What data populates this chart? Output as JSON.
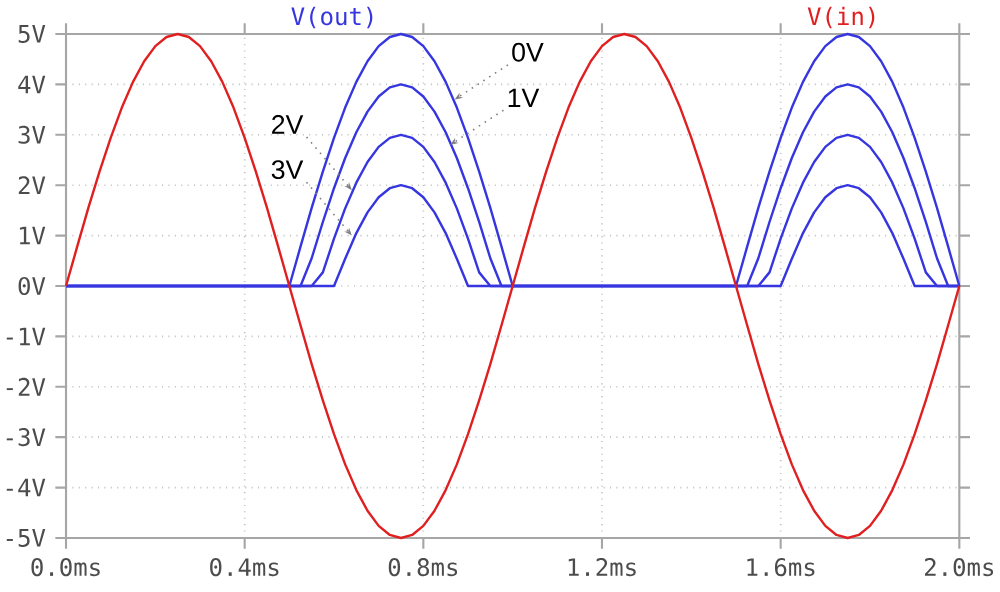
{
  "chart_data": {
    "type": "line",
    "legend": "top",
    "grid": true,
    "marker": "none",
    "line_style": "solid",
    "x": [
      0,
      0.025,
      0.05,
      0.075,
      0.1,
      0.125,
      0.15,
      0.175,
      0.2,
      0.225,
      0.25,
      0.275,
      0.3,
      0.325,
      0.35,
      0.375,
      0.4,
      0.425,
      0.45,
      0.475,
      0.5,
      0.525,
      0.55,
      0.575,
      0.6,
      0.625,
      0.65,
      0.675,
      0.7,
      0.725,
      0.75,
      0.775,
      0.8,
      0.825,
      0.85,
      0.875,
      0.9,
      0.925,
      0.95,
      0.975,
      1,
      1.025,
      1.05,
      1.075,
      1.1,
      1.125,
      1.15,
      1.175,
      1.2,
      1.225,
      1.25,
      1.275,
      1.3,
      1.325,
      1.35,
      1.375,
      1.4,
      1.425,
      1.45,
      1.475,
      1.5,
      1.525,
      1.55,
      1.575,
      1.6,
      1.625,
      1.65,
      1.675,
      1.7,
      1.725,
      1.75,
      1.775,
      1.8,
      1.825,
      1.85,
      1.875,
      1.9,
      1.925,
      1.95,
      1.975,
      2
    ],
    "xlim": [
      0,
      2
    ],
    "ylim": [
      -5,
      5
    ],
    "xticks": [
      {
        "value": 0,
        "label": "0.0ms"
      },
      {
        "value": 0.4,
        "label": "0.4ms"
      },
      {
        "value": 0.8,
        "label": "0.8ms"
      },
      {
        "value": 1.2,
        "label": "1.2ms"
      },
      {
        "value": 1.6,
        "label": "1.6ms"
      },
      {
        "value": 2,
        "label": "2.0ms"
      }
    ],
    "yticks": [
      {
        "value": -5,
        "label": "-5V"
      },
      {
        "value": -4,
        "label": "-4V"
      },
      {
        "value": -3,
        "label": "-3V"
      },
      {
        "value": -2,
        "label": "-2V"
      },
      {
        "value": -1,
        "label": "-1V"
      },
      {
        "value": 0,
        "label": "0V"
      },
      {
        "value": 1,
        "label": "1V"
      },
      {
        "value": 2,
        "label": "2V"
      },
      {
        "value": 3,
        "label": "3V"
      },
      {
        "value": 4,
        "label": "4V"
      },
      {
        "value": 5,
        "label": "5V"
      }
    ],
    "series": [
      {
        "name": "V(out)",
        "color": "#3636e0",
        "values": [
          0,
          0,
          0,
          0,
          0,
          0,
          0,
          0,
          0,
          0,
          0,
          0,
          0,
          0,
          0,
          0,
          0,
          0,
          0,
          0,
          0,
          0.78,
          1.55,
          2.27,
          2.94,
          3.54,
          4.05,
          4.46,
          4.76,
          4.94,
          5,
          4.94,
          4.76,
          4.46,
          4.05,
          3.54,
          2.94,
          2.27,
          1.55,
          0.78,
          0,
          0,
          0,
          0,
          0,
          0,
          0,
          0,
          0,
          0,
          0,
          0,
          0,
          0,
          0,
          0,
          0,
          0,
          0,
          0,
          0,
          0.78,
          1.55,
          2.27,
          2.94,
          3.54,
          4.05,
          4.46,
          4.76,
          4.94,
          5,
          4.94,
          4.76,
          4.46,
          4.05,
          3.54,
          2.94,
          2.27,
          1.55,
          0.78,
          0
        ]
      },
      {
        "color": "#3636e0",
        "values": [
          0,
          0,
          0,
          0,
          0,
          0,
          0,
          0,
          0,
          0,
          0,
          0,
          0,
          0,
          0,
          0,
          0,
          0,
          0,
          0,
          0,
          0,
          0.55,
          1.27,
          1.94,
          2.54,
          3.05,
          3.46,
          3.76,
          3.94,
          4,
          3.94,
          3.76,
          3.46,
          3.05,
          2.54,
          1.94,
          1.27,
          0.55,
          0,
          0,
          0,
          0,
          0,
          0,
          0,
          0,
          0,
          0,
          0,
          0,
          0,
          0,
          0,
          0,
          0,
          0,
          0,
          0,
          0,
          0,
          0,
          0.55,
          1.27,
          1.94,
          2.54,
          3.05,
          3.46,
          3.76,
          3.94,
          4,
          3.94,
          3.76,
          3.46,
          3.05,
          2.54,
          1.94,
          1.27,
          0.55,
          0,
          0
        ]
      },
      {
        "color": "#3636e0",
        "values": [
          0,
          0,
          0,
          0,
          0,
          0,
          0,
          0,
          0,
          0,
          0,
          0,
          0,
          0,
          0,
          0,
          0,
          0,
          0,
          0,
          0,
          0,
          0,
          0.27,
          0.94,
          1.54,
          2.05,
          2.46,
          2.76,
          2.94,
          3,
          2.94,
          2.76,
          2.46,
          2.05,
          1.54,
          0.94,
          0.27,
          0,
          0,
          0,
          0,
          0,
          0,
          0,
          0,
          0,
          0,
          0,
          0,
          0,
          0,
          0,
          0,
          0,
          0,
          0,
          0,
          0,
          0,
          0,
          0,
          0,
          0.27,
          0.94,
          1.54,
          2.05,
          2.46,
          2.76,
          2.94,
          3,
          2.94,
          2.76,
          2.46,
          2.05,
          1.54,
          0.94,
          0.27,
          0,
          0,
          0
        ]
      },
      {
        "color": "#3636e0",
        "values": [
          0,
          0,
          0,
          0,
          0,
          0,
          0,
          0,
          0,
          0,
          0,
          0,
          0,
          0,
          0,
          0,
          0,
          0,
          0,
          0,
          0,
          0,
          0,
          0,
          0,
          0.54,
          1.05,
          1.46,
          1.76,
          1.94,
          2,
          1.94,
          1.76,
          1.46,
          1.05,
          0.54,
          0,
          0,
          0,
          0,
          0,
          0,
          0,
          0,
          0,
          0,
          0,
          0,
          0,
          0,
          0,
          0,
          0,
          0,
          0,
          0,
          0,
          0,
          0,
          0,
          0,
          0,
          0,
          0,
          0,
          0.54,
          1.05,
          1.46,
          1.76,
          1.94,
          2,
          1.94,
          1.76,
          1.46,
          1.05,
          0.54,
          0,
          0,
          0,
          0,
          0
        ]
      },
      {
        "name": "V(in)",
        "color": "#e02020",
        "values": [
          0,
          0.78,
          1.55,
          2.27,
          2.94,
          3.54,
          4.05,
          4.46,
          4.76,
          4.94,
          5,
          4.94,
          4.76,
          4.46,
          4.05,
          3.54,
          2.94,
          2.27,
          1.55,
          0.78,
          0,
          -0.78,
          -1.55,
          -2.27,
          -2.94,
          -3.54,
          -4.05,
          -4.46,
          -4.76,
          -4.94,
          -5,
          -4.94,
          -4.76,
          -4.46,
          -4.05,
          -3.54,
          -2.94,
          -2.27,
          -1.55,
          -0.78,
          0,
          0.78,
          1.55,
          2.27,
          2.94,
          3.54,
          4.05,
          4.46,
          4.76,
          4.94,
          5,
          4.94,
          4.76,
          4.46,
          4.05,
          3.54,
          2.94,
          2.27,
          1.55,
          0.78,
          0,
          -0.78,
          -1.55,
          -2.27,
          -2.94,
          -3.54,
          -4.05,
          -4.46,
          -4.76,
          -4.94,
          -5,
          -4.94,
          -4.76,
          -4.46,
          -4.05,
          -3.54,
          -2.94,
          -2.27,
          -1.55,
          -0.78,
          0
        ]
      }
    ],
    "annotations": [
      {
        "text": "0V",
        "x": 0.87,
        "y": 3.7
      },
      {
        "text": "1V",
        "x": 0.86,
        "y": 2.8
      },
      {
        "text": "2V",
        "x": 0.64,
        "y": 1.9
      },
      {
        "text": "3V",
        "x": 0.64,
        "y": 1.0
      }
    ]
  }
}
